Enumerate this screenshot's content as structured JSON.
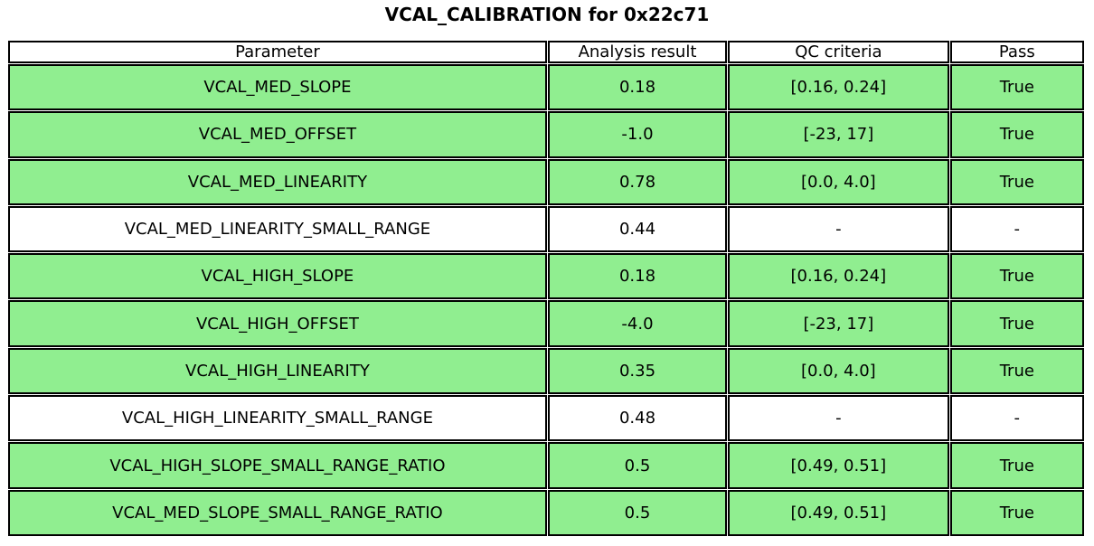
{
  "title": "VCAL_CALIBRATION for 0x22c71",
  "chart_data": {
    "type": "table",
    "title": "VCAL_CALIBRATION for 0x22c71",
    "columns": [
      "Parameter",
      "Analysis result",
      "QC criteria",
      "Pass"
    ],
    "rows": [
      {
        "cells": [
          "VCAL_MED_SLOPE",
          "0.18",
          "[0.16, 0.24]",
          "True"
        ],
        "pass_highlight": true
      },
      {
        "cells": [
          "VCAL_MED_OFFSET",
          "-1.0",
          "[-23, 17]",
          "True"
        ],
        "pass_highlight": true
      },
      {
        "cells": [
          "VCAL_MED_LINEARITY",
          "0.78",
          "[0.0, 4.0]",
          "True"
        ],
        "pass_highlight": true
      },
      {
        "cells": [
          "VCAL_MED_LINEARITY_SMALL_RANGE",
          "0.44",
          "-",
          "-"
        ],
        "pass_highlight": false
      },
      {
        "cells": [
          "VCAL_HIGH_SLOPE",
          "0.18",
          "[0.16, 0.24]",
          "True"
        ],
        "pass_highlight": true
      },
      {
        "cells": [
          "VCAL_HIGH_OFFSET",
          "-4.0",
          "[-23, 17]",
          "True"
        ],
        "pass_highlight": true
      },
      {
        "cells": [
          "VCAL_HIGH_LINEARITY",
          "0.35",
          "[0.0, 4.0]",
          "True"
        ],
        "pass_highlight": true
      },
      {
        "cells": [
          "VCAL_HIGH_LINEARITY_SMALL_RANGE",
          "0.48",
          "-",
          "-"
        ],
        "pass_highlight": false
      },
      {
        "cells": [
          "VCAL_HIGH_SLOPE_SMALL_RANGE_RATIO",
          "0.5",
          "[0.49, 0.51]",
          "True"
        ],
        "pass_highlight": true
      },
      {
        "cells": [
          "VCAL_MED_SLOPE_SMALL_RANGE_RATIO",
          "0.5",
          "[0.49, 0.51]",
          "True"
        ],
        "pass_highlight": true
      }
    ],
    "colors": {
      "highlight_row_bg": "#90ee90",
      "plain_row_bg": "#ffffff",
      "header_bg": "#ffffff",
      "border": "#000000",
      "text": "#000000"
    },
    "layout_hints": {
      "grid": "on",
      "column_width_fractions": [
        0.502,
        0.167,
        0.206,
        0.125
      ]
    }
  }
}
